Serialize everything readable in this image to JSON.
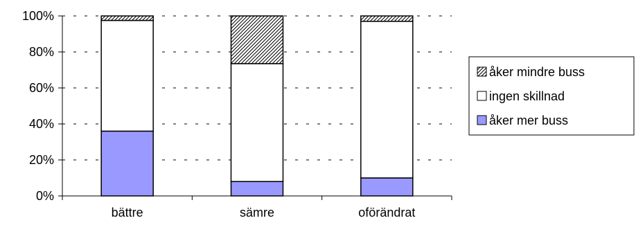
{
  "chart_data": {
    "type": "bar",
    "stacked": true,
    "percent_stacked": true,
    "categories": [
      "bättre",
      "sämre",
      "oförändrat"
    ],
    "series": [
      {
        "name": "åker mer buss",
        "values": [
          36,
          8,
          10
        ],
        "color": "#9999ff",
        "pattern": "solid"
      },
      {
        "name": "ingen skillnad",
        "values": [
          61.5,
          65.5,
          87
        ],
        "color": "#ffffff",
        "pattern": "solid"
      },
      {
        "name": "åker mindre buss",
        "values": [
          2.5,
          26.5,
          3
        ],
        "color": "#ffffff",
        "pattern": "diagonal-hatch"
      }
    ],
    "y_ticks": [
      "0%",
      "20%",
      "40%",
      "60%",
      "80%",
      "100%"
    ],
    "ylim": [
      0,
      100
    ],
    "grid": "dashed horizontal",
    "legend_position": "right",
    "legend_order": [
      "åker mindre buss",
      "ingen skillnad",
      "åker mer buss"
    ]
  }
}
